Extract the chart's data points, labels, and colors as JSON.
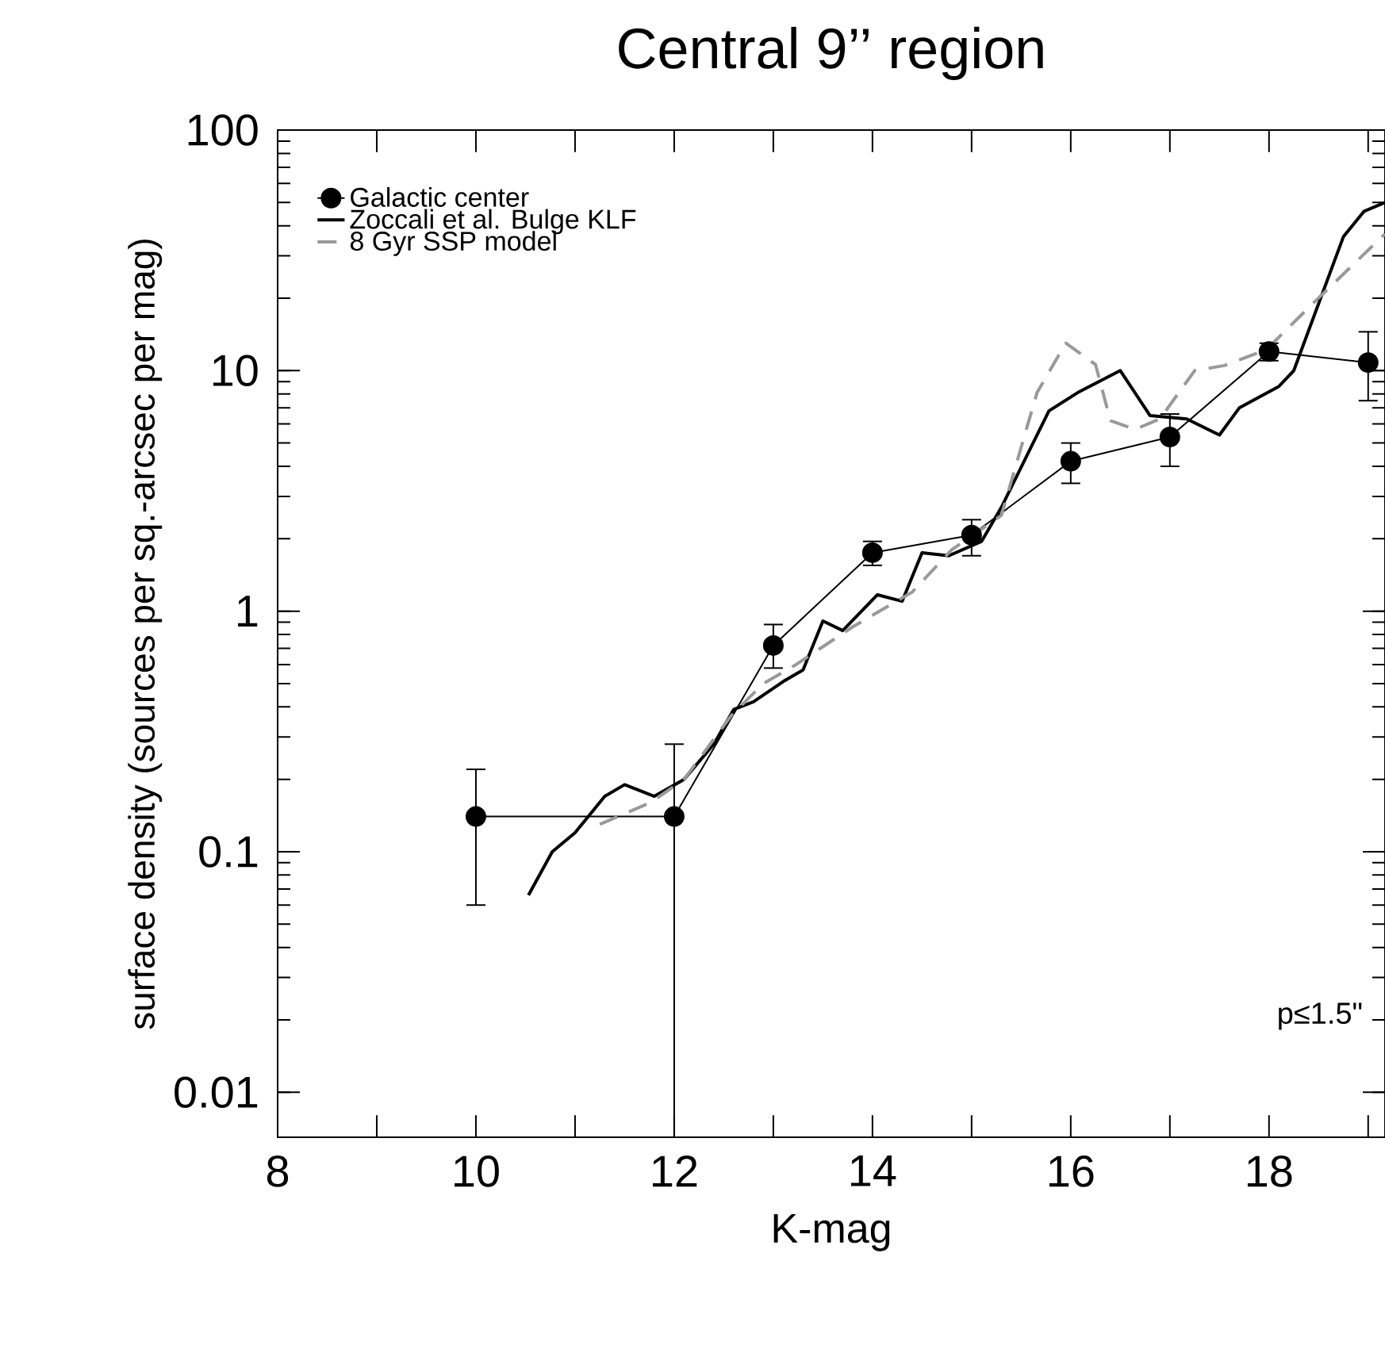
{
  "chart_data": {
    "type": "line",
    "title": "Central 9’’ region",
    "xlabel": "K-mag",
    "ylabel": "surface density (sources per sq.-arcsec per mag)",
    "log": "y",
    "xlim": [
      8,
      19.17
    ],
    "ylim": [
      0.0065,
      100
    ],
    "xticks": [
      8,
      {
        "value": 9,
        "label": null
      },
      10,
      {
        "value": 11,
        "label": null
      },
      12,
      {
        "value": 13,
        "label": null
      },
      14,
      {
        "value": 15,
        "label": null
      },
      16,
      {
        "value": 17,
        "label": null
      },
      18,
      {
        "value": 19,
        "label": null
      }
    ],
    "yticks": [
      0.01,
      0.1,
      1,
      10,
      100
    ],
    "legend": "top left",
    "grid": false,
    "annotations": [
      "p≤1.5\""
    ],
    "series": [
      {
        "name": "Galactic center",
        "color": "#000000",
        "marker": "circle",
        "line_style": "solid",
        "x": [
          10,
          12,
          13,
          14,
          15,
          16,
          17,
          18,
          19
        ],
        "values": [
          0.14,
          0.14,
          0.72,
          1.75,
          2.07,
          4.2,
          5.3,
          12,
          10.8
        ],
        "errors": [
          [
            0.06,
            0.22
          ],
          [
            0.0065,
            0.28
          ],
          [
            0.58,
            0.88
          ],
          [
            1.55,
            1.95
          ],
          [
            1.7,
            2.4
          ],
          [
            3.4,
            5.0
          ],
          [
            4.0,
            6.6
          ],
          [
            11,
            13
          ],
          [
            7.5,
            14.5
          ]
        ]
      },
      {
        "name": "Zoccali et al. Bulge KLF",
        "color": "#000000",
        "marker": "none",
        "line_style": "solid",
        "x": [
          10.53,
          10.77,
          11.0,
          11.3,
          11.5,
          11.8,
          12.1,
          12.4,
          12.6,
          12.8,
          13.1,
          13.3,
          13.5,
          13.7,
          14.05,
          14.3,
          14.5,
          14.77,
          15.1,
          15.3,
          15.78,
          16.07,
          16.5,
          16.8,
          17.17,
          17.5,
          17.7,
          18.1,
          18.25,
          18.75,
          18.96,
          19.17
        ],
        "values": [
          0.066,
          0.1,
          0.12,
          0.17,
          0.19,
          0.17,
          0.2,
          0.28,
          0.39,
          0.42,
          0.51,
          0.57,
          0.91,
          0.83,
          1.17,
          1.1,
          1.75,
          1.7,
          1.95,
          2.7,
          6.8,
          8.1,
          10,
          6.5,
          6.3,
          5.4,
          7.0,
          8.6,
          10,
          36,
          46,
          50
        ]
      },
      {
        "name": "8 Gyr SSP model",
        "color": "#999999",
        "marker": "none",
        "line_style": "dashed",
        "x": [
          11.25,
          11.76,
          12.1,
          12.58,
          12.9,
          13.23,
          13.8,
          14.4,
          14.8,
          15.3,
          15.66,
          15.95,
          16.25,
          16.4,
          16.65,
          16.9,
          17.25,
          17.55,
          17.97,
          18.47,
          19.17
        ],
        "values": [
          0.13,
          0.16,
          0.2,
          0.37,
          0.5,
          0.6,
          0.86,
          1.2,
          1.8,
          2.5,
          8.1,
          13,
          10.6,
          6.2,
          5.7,
          6.3,
          10,
          10.5,
          12.2,
          19.5,
          37
        ]
      }
    ]
  }
}
